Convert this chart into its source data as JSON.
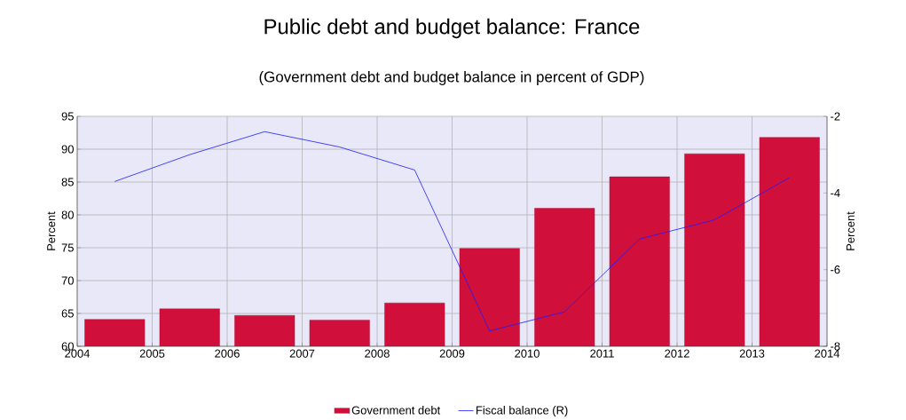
{
  "chart_data": {
    "type": "bar",
    "title": "Public debt and budget balance: France",
    "subtitle": "(Government debt and budget balance in percent of GDP)",
    "ylabel": "Percent",
    "y2label": "Percent",
    "x": [
      2004.5,
      2005.5,
      2006.5,
      2007.5,
      2008.5,
      2009.5,
      2010.5,
      2011.5,
      2012.5,
      2013.5
    ],
    "series": [
      {
        "name": "Government debt",
        "color": "#d0103a",
        "values": [
          64.1,
          65.7,
          64.7,
          64.0,
          66.6,
          74.9,
          81.0,
          85.8,
          89.3,
          91.8
        ]
      },
      {
        "name": "Fiscal balance (R)",
        "type": "line",
        "axis": "y2",
        "color": "#1a1aff",
        "values": [
          -3.7,
          -3.0,
          -2.4,
          -2.8,
          -3.4,
          -7.6,
          -7.1,
          -5.2,
          -4.7,
          -3.6
        ]
      }
    ],
    "xlim": [
      2004,
      2014
    ],
    "xticks": [
      2004,
      2005,
      2006,
      2007,
      2008,
      2009,
      2010,
      2011,
      2012,
      2013,
      2014
    ],
    "ylim": [
      60,
      95
    ],
    "yticks": [
      60,
      65,
      70,
      75,
      80,
      85,
      90,
      95
    ],
    "y2lim": [
      -8,
      -2
    ],
    "y2ticks": [
      -8,
      -6,
      -4,
      -2
    ],
    "grid": true,
    "legend": "bottom"
  }
}
